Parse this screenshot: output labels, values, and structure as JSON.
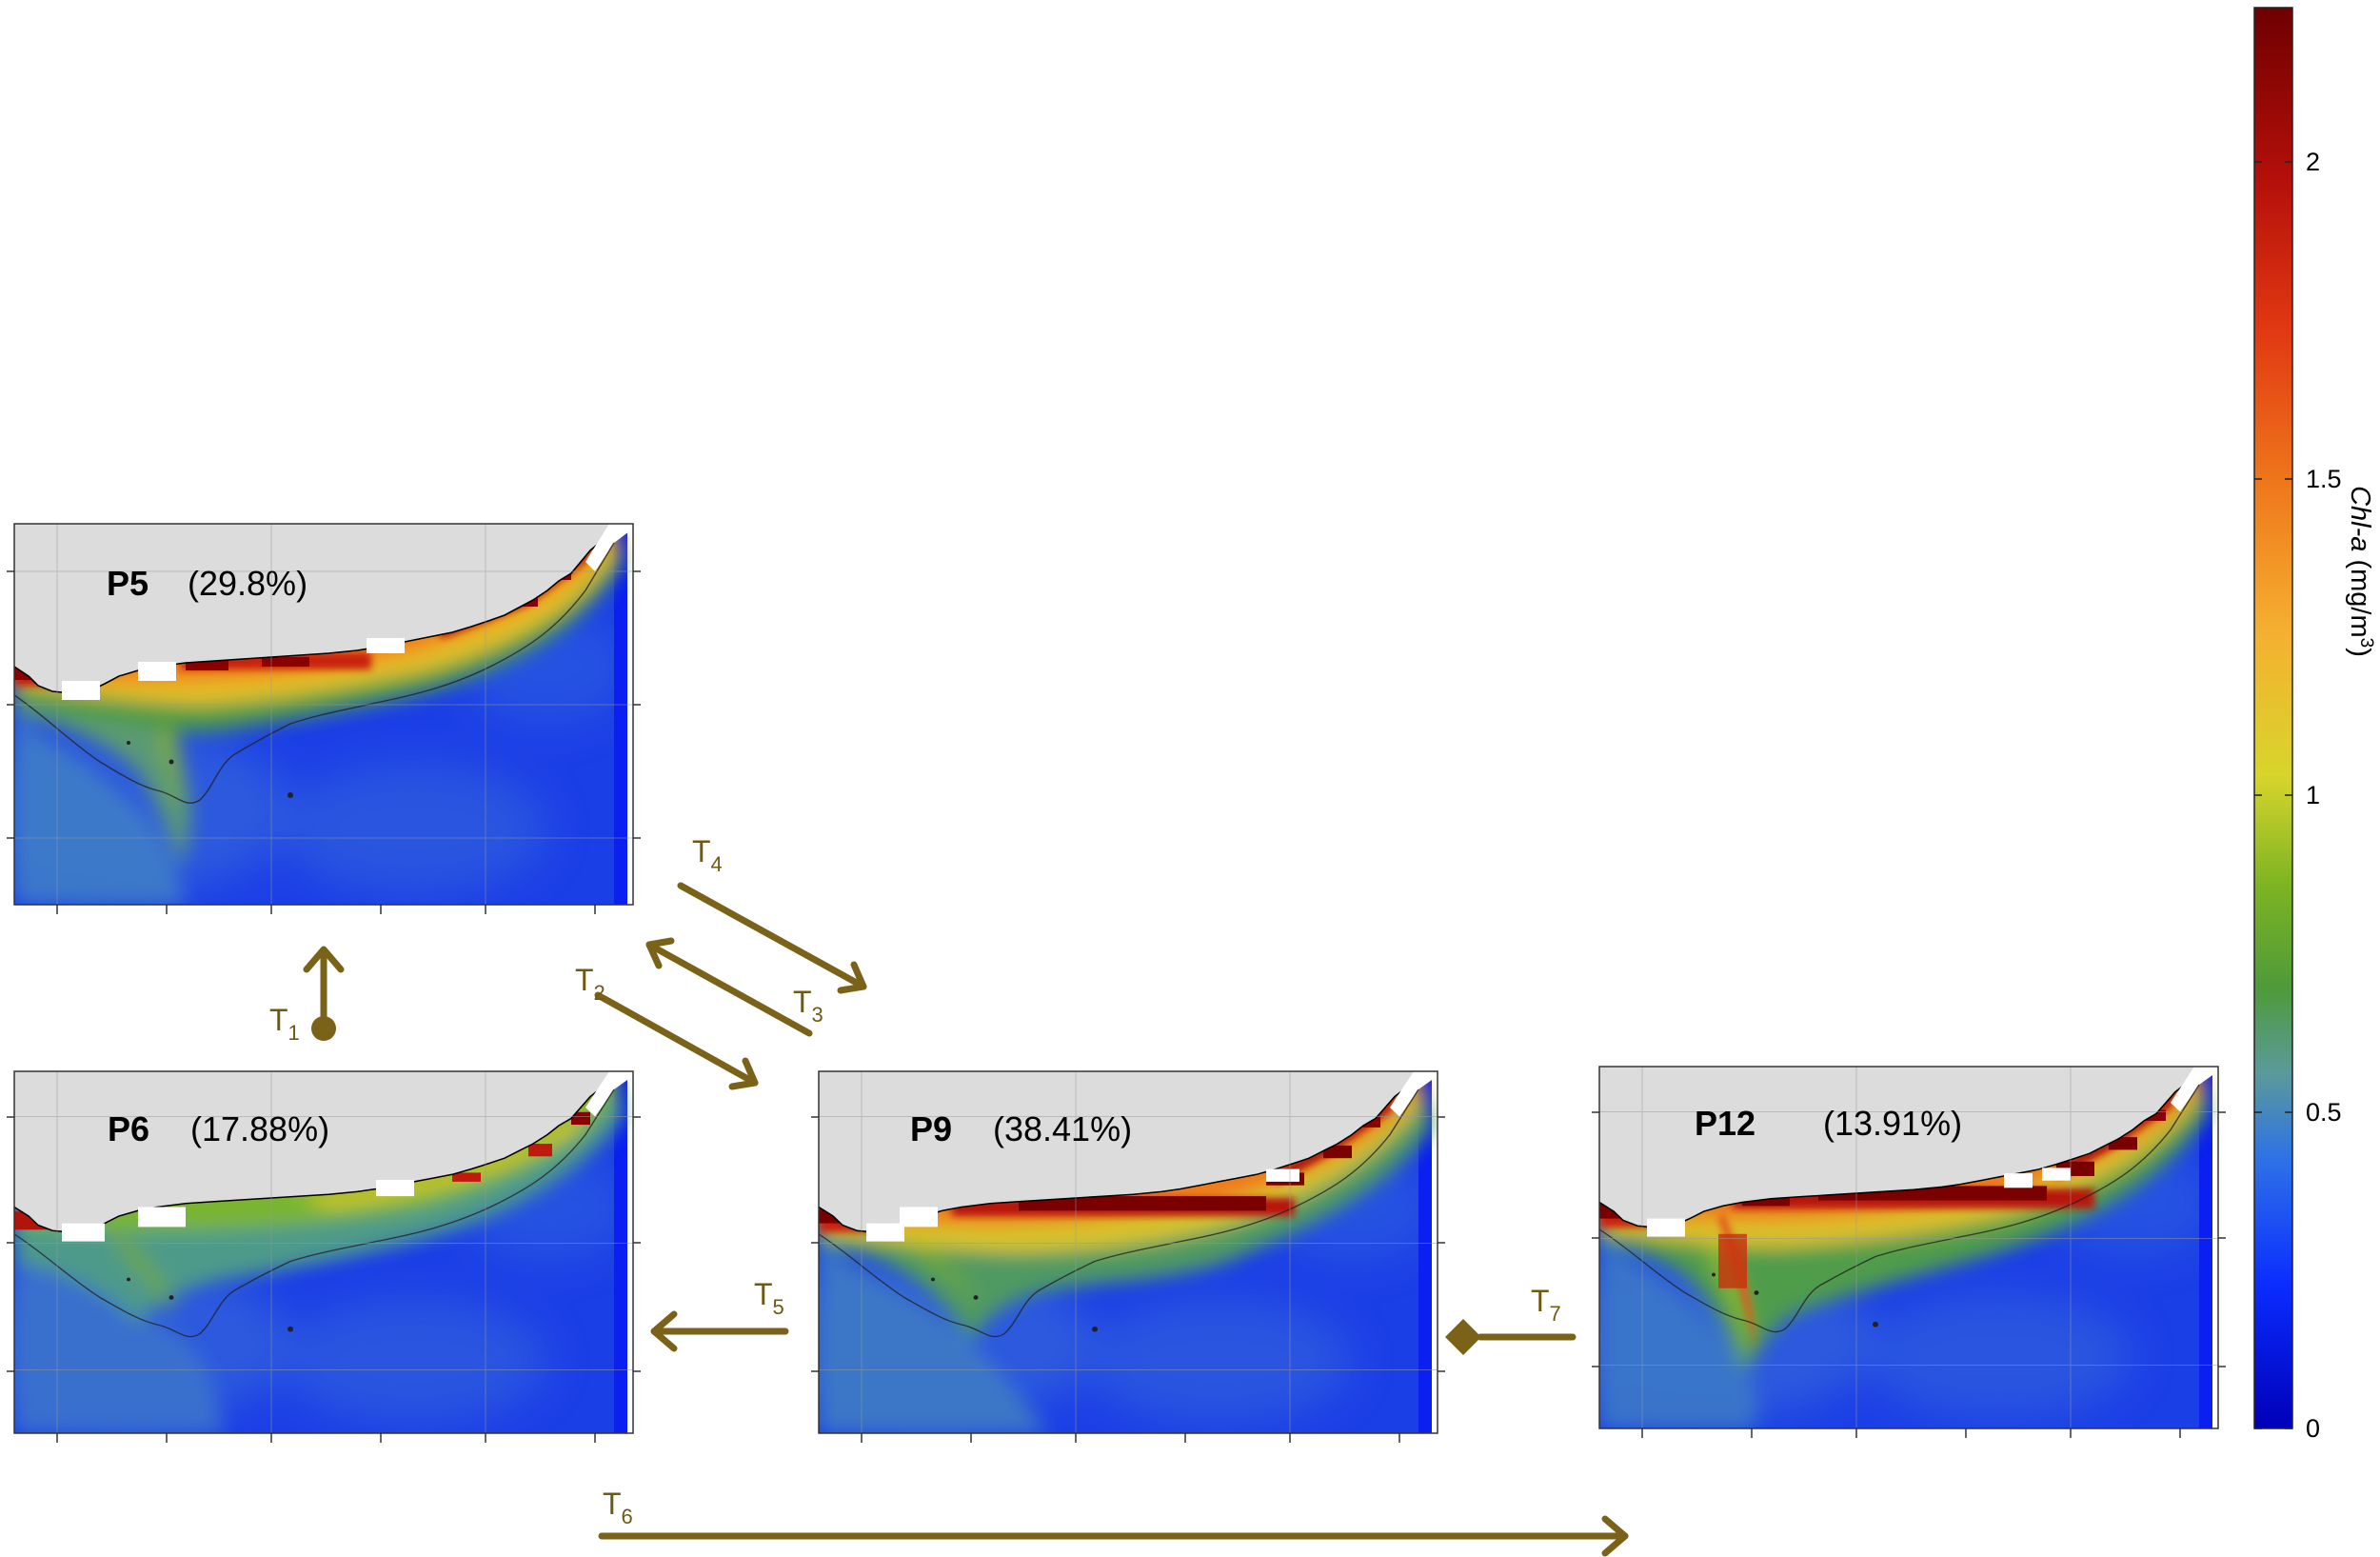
{
  "panels": [
    {
      "id": "P5",
      "label": "P5",
      "percent": "(29.8%)"
    },
    {
      "id": "P6",
      "label": "P6",
      "percent": "(17.88%)"
    },
    {
      "id": "P9",
      "label": "P9",
      "percent": "(38.41%)"
    },
    {
      "id": "P12",
      "label": "P12",
      "percent": "(13.91%)"
    }
  ],
  "transitions": [
    {
      "label": "T",
      "sub": "1",
      "from": "P6",
      "to": "P5"
    },
    {
      "label": "T",
      "sub": "2",
      "from": "P5",
      "to": "P9"
    },
    {
      "label": "T",
      "sub": "3",
      "from": "P9",
      "to": "P5"
    },
    {
      "label": "T",
      "sub": "4",
      "from": "P5",
      "to": "P9"
    },
    {
      "label": "T",
      "sub": "5",
      "from": "P9",
      "to": "P6"
    },
    {
      "label": "T",
      "sub": "6",
      "from": "P6",
      "to": "P12"
    },
    {
      "label": "T",
      "sub": "7",
      "from": "P12",
      "to": "P9"
    }
  ],
  "colorbar": {
    "title_italic": "Chl-a",
    "title_rest": " (mg/m",
    "title_sup": "3",
    "title_close": ")",
    "ticks": [
      "0",
      "0.5",
      "1",
      "1.5",
      "2"
    ]
  },
  "colors": {
    "arrow": "#7a6218",
    "land": "#dcdcdc",
    "ocean": "#1b3fe6"
  }
}
